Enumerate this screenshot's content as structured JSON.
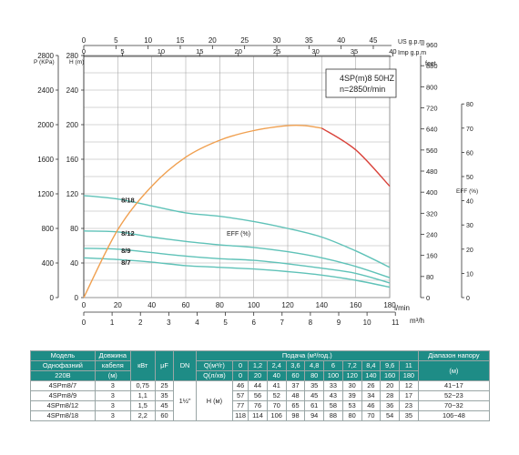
{
  "chart_data": {
    "type": "line",
    "title": "4SP(m)8 50HZ",
    "subtitle": "n=2850r/min",
    "xlabel": "l/min",
    "x_ticks": [
      0,
      20,
      40,
      60,
      80,
      100,
      120,
      140,
      160,
      180
    ],
    "xlim": [
      0,
      180
    ],
    "ylabel_head": "H (m)",
    "y_head_ticks": [
      0,
      40,
      80,
      120,
      160,
      200,
      240,
      280
    ],
    "ylim_head": [
      0,
      280
    ],
    "ylabel_pressure": "P (KPa)",
    "y_pressure_ticks": [
      0,
      400,
      800,
      1200,
      1600,
      2000,
      2400,
      2800
    ],
    "ylabel_feet": "feet",
    "y_feet_ticks": [
      0,
      80,
      160,
      240,
      320,
      400,
      480,
      560,
      640,
      720,
      800,
      880,
      960
    ],
    "ylabel_eff": "EFF (%)",
    "y_eff_ticks": [
      0,
      10,
      20,
      30,
      40,
      50,
      60,
      70,
      80
    ],
    "top_axis_us_label": "US g.p.m",
    "top_axis_us_ticks": [
      0,
      5,
      10,
      15,
      20,
      25,
      30,
      35,
      40,
      45
    ],
    "top_axis_imp_label": "Imp g.p.m",
    "top_axis_imp_ticks": [
      0,
      5,
      10,
      15,
      20,
      25,
      30,
      35,
      40
    ],
    "bottom_axis_m3h_label": "m³/h",
    "bottom_axis_m3h_ticks": [
      0,
      1,
      2,
      3,
      4,
      5,
      6,
      7,
      8,
      9,
      10,
      11
    ],
    "eff_curve_label": "EFF (%)",
    "grid": true,
    "series": [
      {
        "name": "8/18",
        "color": "#5fc2b8",
        "x": [
          0,
          20,
          40,
          60,
          80,
          100,
          120,
          140,
          160,
          180
        ],
        "values": [
          118,
          114,
          106,
          98,
          94,
          88,
          80,
          70,
          54,
          35
        ]
      },
      {
        "name": "8/12",
        "color": "#5fc2b8",
        "x": [
          0,
          20,
          40,
          60,
          80,
          100,
          120,
          140,
          160,
          180
        ],
        "values": [
          77,
          76,
          70,
          65,
          61,
          58,
          53,
          46,
          36,
          23
        ]
      },
      {
        "name": "8/9",
        "color": "#5fc2b8",
        "x": [
          0,
          20,
          40,
          60,
          80,
          100,
          120,
          140,
          160,
          180
        ],
        "values": [
          57,
          56,
          52,
          48,
          45,
          43,
          39,
          34,
          28,
          17
        ]
      },
      {
        "name": "8/7",
        "color": "#5fc2b8",
        "x": [
          0,
          20,
          40,
          60,
          80,
          100,
          120,
          140,
          160,
          180
        ],
        "values": [
          46,
          44,
          41,
          37,
          35,
          33,
          30,
          26,
          20,
          12
        ]
      }
    ],
    "efficiency": {
      "color": "#f0a050",
      "x": [
        0,
        20,
        40,
        60,
        80,
        100,
        120,
        130,
        140,
        160,
        180
      ],
      "values": [
        0,
        28,
        46,
        58,
        65,
        69,
        71,
        71,
        70,
        61,
        46
      ]
    }
  },
  "table": {
    "header_row1": {
      "model": "Модель",
      "cable": "Довжина",
      "kw": "кВт",
      "uf": "μF",
      "dn": "DN",
      "flow_title": "Подача (м³/год.)",
      "range": "Діапазон напору"
    },
    "header_row2": {
      "model": "Однофазний",
      "cable": "кабеля",
      "q_m3h": "Q(м³/г)",
      "q_m3h_values": [
        "0",
        "1,2",
        "2,4",
        "3,6",
        "4,8",
        "6",
        "7,2",
        "8,4",
        "9,6",
        "11"
      ],
      "range_unit": "(м)"
    },
    "header_row3": {
      "model": "220В",
      "cable": "(м)",
      "q_lmin": "Q(л/хв)",
      "q_lmin_values": [
        "0",
        "20",
        "40",
        "60",
        "80",
        "100",
        "120",
        "140",
        "160",
        "180"
      ]
    },
    "dn_value": "1½\"",
    "head_label": "H (м)",
    "rows": [
      {
        "model": "4SPm8/7",
        "cable": "3",
        "kw": "0,75",
        "uf": "25",
        "h": [
          "46",
          "44",
          "41",
          "37",
          "35",
          "33",
          "30",
          "26",
          "20",
          "12"
        ],
        "range": "41~17"
      },
      {
        "model": "4SPm8/9",
        "cable": "3",
        "kw": "1,1",
        "uf": "35",
        "h": [
          "57",
          "56",
          "52",
          "48",
          "45",
          "43",
          "39",
          "34",
          "28",
          "17"
        ],
        "range": "52~23"
      },
      {
        "model": "4SPm8/12",
        "cable": "3",
        "kw": "1,5",
        "uf": "45",
        "h": [
          "77",
          "76",
          "70",
          "65",
          "61",
          "58",
          "53",
          "46",
          "36",
          "23"
        ],
        "range": "70~32"
      },
      {
        "model": "4SPm8/18",
        "cable": "3",
        "kw": "2,2",
        "uf": "60",
        "h": [
          "118",
          "114",
          "106",
          "98",
          "94",
          "88",
          "80",
          "70",
          "54",
          "35"
        ],
        "range": "106~48"
      }
    ]
  }
}
